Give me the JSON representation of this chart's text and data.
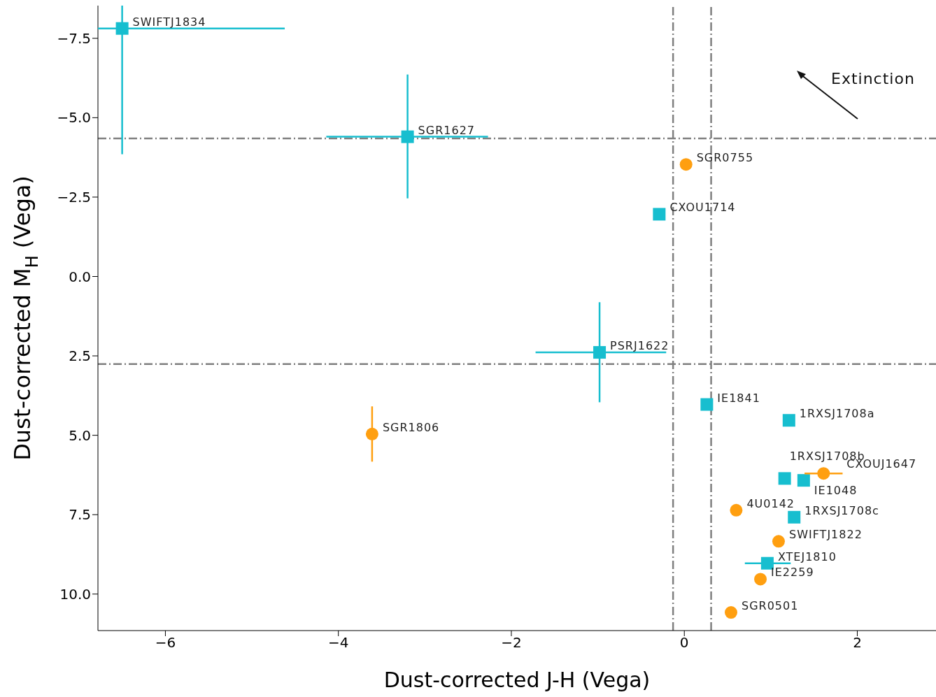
{
  "chart_data": {
    "type": "scatter",
    "xlabel": "Dust-corrected J-H (Vega)",
    "ylabel": "Dust-corrected M$_{H}$ (Vega)",
    "xlim": [
      -6.78,
      2.91
    ],
    "ylim": [
      11.15,
      -8.53
    ],
    "xticks": [
      {
        "value": -6,
        "label": "−6"
      },
      {
        "value": -4,
        "label": "−4"
      },
      {
        "value": -2,
        "label": "−2"
      },
      0,
      2
    ],
    "yticks": [
      {
        "value": -7.5,
        "label": "−7.5"
      },
      {
        "value": -5,
        "label": "−5.0"
      },
      {
        "value": -2.5,
        "label": "−2.5"
      },
      {
        "value": 0,
        "label": "0.0"
      },
      {
        "value": 2.5,
        "label": "2.5"
      },
      {
        "value": 5,
        "label": "5.0"
      },
      {
        "value": 7.5,
        "label": "7.5"
      },
      {
        "value": 10,
        "label": "10.0"
      }
    ],
    "grid": false,
    "legend": false,
    "series": [
      {
        "color": "#17becf",
        "marker": "square",
        "x": [
          -6.5,
          -3.2,
          -0.29,
          -0.98,
          0.26,
          1.21,
          1.16,
          1.38,
          1.27,
          0.96
        ],
        "values": [
          -7.81,
          -4.4,
          -1.96,
          2.39,
          4.03,
          4.53,
          6.36,
          6.42,
          7.58,
          9.03
        ],
        "errors": [
          [
            -8.53,
            -3.85
          ],
          [
            -6.36,
            -2.46
          ],
          null,
          [
            0.81,
            3.96
          ],
          null,
          null,
          null,
          null,
          null,
          null
        ],
        "xerrors": [
          [
            -6.78,
            -4.62
          ],
          [
            -4.14,
            -2.27
          ],
          null,
          [
            -1.72,
            -0.21
          ],
          null,
          null,
          null,
          null,
          null,
          [
            0.7,
            1.23
          ]
        ]
      },
      {
        "color": "#ff9f10",
        "marker": "circle",
        "x": [
          0.02,
          -3.61,
          1.61,
          0.6,
          1.09,
          0.88,
          0.54
        ],
        "values": [
          -3.53,
          4.96,
          6.2,
          7.36,
          8.34,
          9.53,
          10.58
        ],
        "errors": [
          null,
          [
            4.09,
            5.83
          ],
          null,
          null,
          null,
          null,
          null
        ],
        "xerrors": [
          null,
          null,
          [
            1.39,
            1.83
          ],
          null,
          null,
          null,
          null
        ]
      }
    ],
    "ref_lines": [
      {
        "axis": "x",
        "value": -0.13,
        "color": "#808080",
        "line_style": "dashdot"
      },
      {
        "axis": "x",
        "value": 0.31,
        "color": "#808080",
        "line_style": "dashdot"
      },
      {
        "axis": "y",
        "value": -4.35,
        "color": "#808080",
        "line_style": "dashdot"
      },
      {
        "axis": "y",
        "value": 2.76,
        "color": "#808080",
        "line_style": "dashdot"
      }
    ],
    "annotations": [
      {
        "text": "SWIFTJ1834",
        "x": -6.5,
        "y": -7.81
      },
      {
        "text": "SGR1627",
        "x": -3.2,
        "y": -4.4
      },
      {
        "text": "SGR0755",
        "x": 0.02,
        "y": -3.53
      },
      {
        "text": "CXOU1714",
        "x": -0.29,
        "y": -1.96
      },
      {
        "text": "PSRJ1622",
        "x": -0.98,
        "y": 2.39
      },
      {
        "text": "SGR1806",
        "x": -3.61,
        "y": 4.96
      },
      {
        "text": "IE1841",
        "x": 0.26,
        "y": 4.03
      },
      {
        "text": "1RXSJ1708a",
        "x": 1.21,
        "y": 4.53
      },
      {
        "text": "1RXSJ1708b",
        "x": 1.16,
        "y": 6.36
      },
      {
        "text": "CXOUJ1647",
        "x": 1.61,
        "y": 6.2
      },
      {
        "text": "IE1048",
        "x": 1.38,
        "y": 6.42
      },
      {
        "text": "4U0142",
        "x": 0.6,
        "y": 7.36
      },
      {
        "text": "1RXSJ1708c",
        "x": 1.27,
        "y": 7.58
      },
      {
        "text": "SWIFTJ1822",
        "x": 1.09,
        "y": 8.34
      },
      {
        "text": "XTEJ1810",
        "x": 0.96,
        "y": 9.03
      },
      {
        "text": "IE2259",
        "x": 0.88,
        "y": 9.53
      },
      {
        "text": "SGR0501",
        "x": 0.54,
        "y": 10.58
      },
      "Extinction"
    ]
  }
}
